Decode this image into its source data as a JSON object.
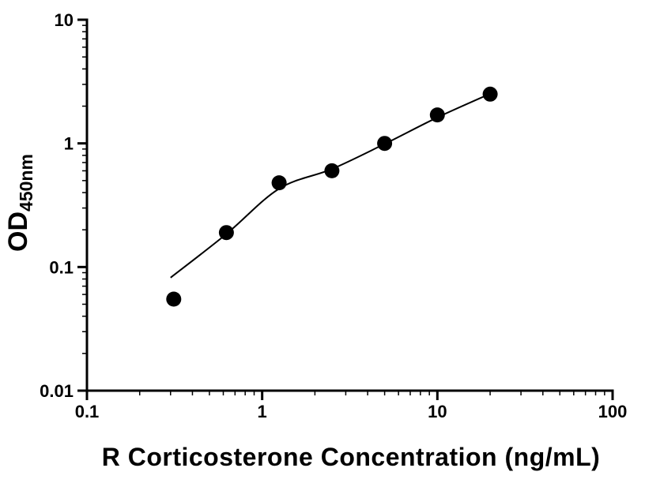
{
  "chart_data": {
    "type": "scatter",
    "title": "",
    "xlabel": "R Corticosterone Concentration (ng/mL)",
    "ylabel_main": "OD",
    "ylabel_sub": "450nm",
    "x_scale": "log",
    "y_scale": "log",
    "xlim": [
      0.1,
      100
    ],
    "ylim": [
      0.01,
      10
    ],
    "grid": false,
    "legend": false,
    "background": "#ffffff",
    "axis_color": "#000000",
    "x_ticks": [
      {
        "value": 0.1,
        "label": "0.1"
      },
      {
        "value": 1,
        "label": "1"
      },
      {
        "value": 10,
        "label": "10"
      },
      {
        "value": 100,
        "label": "100"
      }
    ],
    "y_ticks": [
      {
        "value": 10,
        "label": "10"
      },
      {
        "value": 1,
        "label": "1"
      },
      {
        "value": 0.1,
        "label": "0.1"
      },
      {
        "value": 0.01,
        "label": "0.01"
      }
    ],
    "series": [
      {
        "name": "corticosterone-standard-points",
        "marker": "circle",
        "marker_radius": 9.5,
        "color": "#000000",
        "points": [
          {
            "x": 0.313,
            "y": 0.055
          },
          {
            "x": 0.625,
            "y": 0.19
          },
          {
            "x": 1.25,
            "y": 0.48
          },
          {
            "x": 2.5,
            "y": 0.6
          },
          {
            "x": 5,
            "y": 1.0
          },
          {
            "x": 10,
            "y": 1.7
          },
          {
            "x": 20,
            "y": 2.5
          }
        ]
      }
    ],
    "fit_curve": {
      "name": "fitted-standard-curve",
      "color": "#000000",
      "stroke_width": 2,
      "points": [
        {
          "x": 0.3,
          "y": 0.082
        },
        {
          "x": 0.625,
          "y": 0.185
        },
        {
          "x": 1.25,
          "y": 0.43
        },
        {
          "x": 2.5,
          "y": 0.62
        },
        {
          "x": 5,
          "y": 0.99
        },
        {
          "x": 10,
          "y": 1.62
        },
        {
          "x": 20,
          "y": 2.52
        }
      ]
    }
  }
}
